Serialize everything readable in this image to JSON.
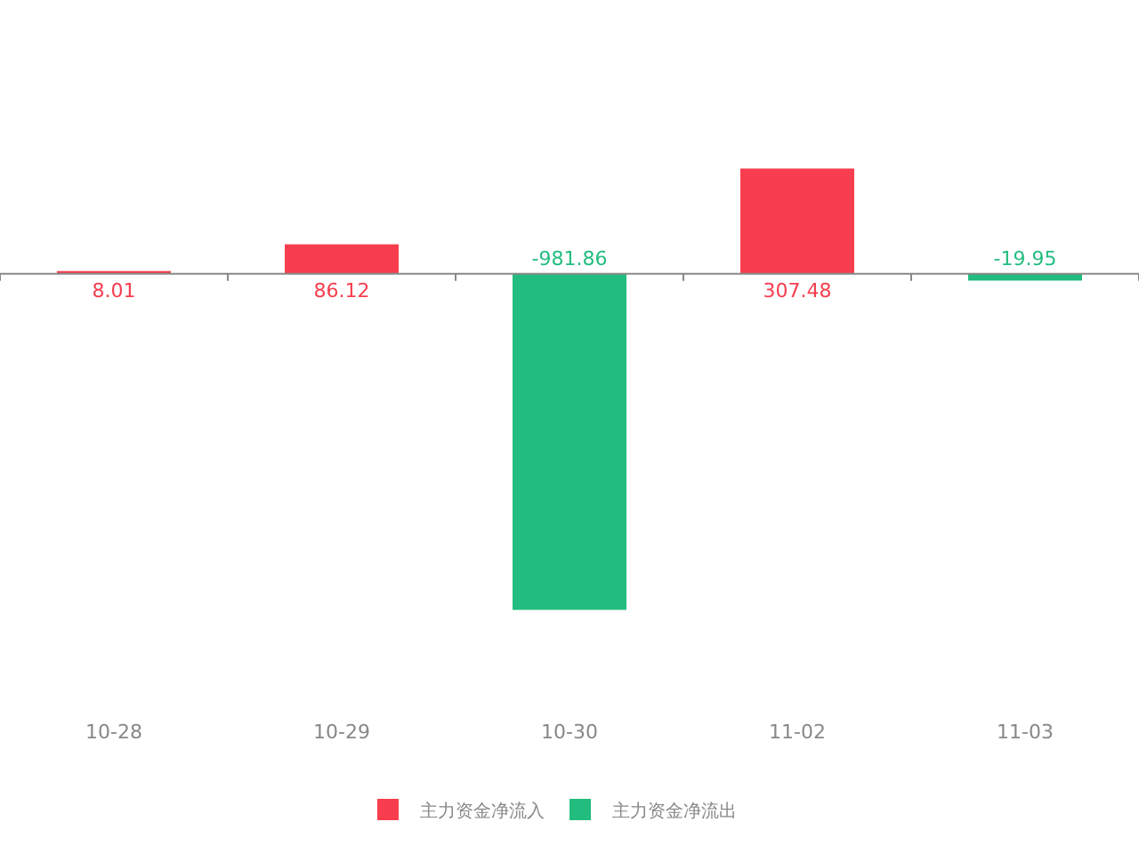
{
  "chart_data": {
    "type": "bar",
    "categories": [
      "10-28",
      "10-29",
      "10-30",
      "11-02",
      "11-03"
    ],
    "series": [
      {
        "name": "主力资金净流入",
        "color": "#f73d4e",
        "values": [
          8.01,
          86.12,
          null,
          307.48,
          null
        ]
      },
      {
        "name": "主力资金净流出",
        "color": "#22bd7e",
        "values": [
          null,
          null,
          -981.86,
          null,
          -19.95
        ]
      }
    ],
    "stacked": true,
    "data_labels": true,
    "legend": "bottom"
  }
}
